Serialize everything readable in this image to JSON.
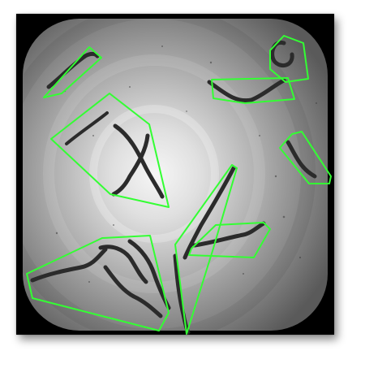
{
  "image": {
    "subject": "microscope-plate",
    "background_color": "#000000",
    "dish_center_color": "#f4f4f4",
    "dish_edge_color": "#5e5e5e",
    "worm_color": "#2b2b2b",
    "outline_color": "#33ff33",
    "worm_count": 11,
    "outline_count": 9
  }
}
